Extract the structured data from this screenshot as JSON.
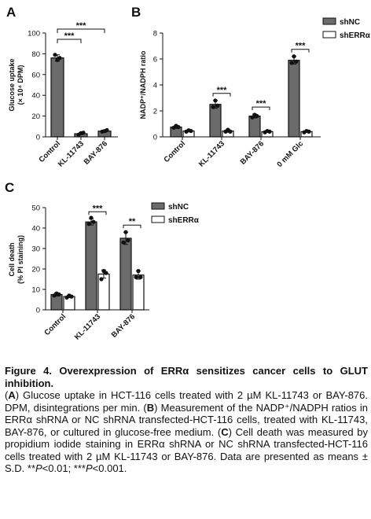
{
  "colors": {
    "shNC": "#6b6b6b",
    "shERR": "#ffffff",
    "stroke": "#111111"
  },
  "chart_data": [
    {
      "panel": "A",
      "type": "bar",
      "categories": [
        "Control",
        "KL-11743",
        "BAY-876"
      ],
      "values": [
        76,
        3,
        5.5
      ],
      "errors": [
        3,
        1,
        1
      ],
      "points": [
        [
          79,
          74,
          76
        ],
        [
          2,
          3.5,
          4
        ],
        [
          5,
          5.5,
          6.5
        ]
      ],
      "ylabel_line1": "Glucose uptake",
      "ylabel_line2": "(× 10⁴ DPM)",
      "ylim": [
        0,
        100
      ],
      "yticks": [
        "0",
        "20",
        "40",
        "60",
        "80",
        "100"
      ],
      "significance": [
        "***",
        "***"
      ],
      "series_color": "shNC"
    },
    {
      "panel": "B",
      "type": "bar",
      "categories": [
        "Control",
        "KL-11743",
        "BAY-876",
        "0 mM Glc"
      ],
      "series": [
        {
          "name": "shNC",
          "values": [
            0.75,
            2.5,
            1.6,
            5.9
          ],
          "errors": [
            0.1,
            0.3,
            0.15,
            0.3
          ],
          "points": [
            [
              0.7,
              0.85,
              0.75
            ],
            [
              2.3,
              2.8,
              2.4
            ],
            [
              1.5,
              1.7,
              1.6
            ],
            [
              5.7,
              6.2,
              5.8
            ]
          ]
        },
        {
          "name": "shERRα",
          "values": [
            0.45,
            0.45,
            0.4,
            0.4
          ],
          "errors": [
            0.05,
            0.1,
            0.05,
            0.05
          ],
          "points": [
            [
              0.4,
              0.5,
              0.45
            ],
            [
              0.4,
              0.55,
              0.4
            ],
            [
              0.35,
              0.45,
              0.4
            ],
            [
              0.35,
              0.45,
              0.4
            ]
          ]
        }
      ],
      "ylabel": "NADP⁺/NADPH ratio",
      "ylim": [
        0,
        8
      ],
      "yticks": [
        "0",
        "2",
        "4",
        "6",
        "8"
      ],
      "significance": [
        "",
        "***",
        "***",
        "***"
      ],
      "legend": [
        "shNC",
        "shERRα"
      ]
    },
    {
      "panel": "C",
      "type": "bar",
      "categories": [
        "Control",
        "KL-11743",
        "BAY-876"
      ],
      "series": [
        {
          "name": "shNC",
          "values": [
            7.5,
            43,
            35
          ],
          "errors": [
            0.8,
            1.5,
            3
          ],
          "points": [
            [
              7,
              8,
              7.5
            ],
            [
              42,
              45,
              43
            ],
            [
              33,
              38,
              34
            ]
          ]
        },
        {
          "name": "shERRα",
          "values": [
            6.5,
            17.5,
            17
          ],
          "errors": [
            0.6,
            2,
            2
          ],
          "points": [
            [
              6,
              7,
              6.5
            ],
            [
              15,
              19,
              18
            ],
            [
              16,
              19,
              16
            ]
          ]
        }
      ],
      "ylabel_line1": "Cell death",
      "ylabel_line2": "(% PI staining)",
      "ylim": [
        0,
        50
      ],
      "yticks": [
        "0",
        "10",
        "20",
        "30",
        "40",
        "50"
      ],
      "significance": [
        "",
        "***",
        "**"
      ],
      "legend": [
        "shNC",
        "shERRα"
      ]
    }
  ],
  "caption": {
    "title": "Figure 4. Overexpression of ERRα sensitizes cancer cells to GLUT inhibition.",
    "a_letter": "A",
    "a_text": ") Glucose uptake in HCT-116 cells treated with 2 µM KL-11743 or BAY-876. DPM, disintegrations per min. (",
    "b_letter": "B",
    "b_text": ") Measurement of the NADP⁺/NADPH ratios in ERRα shRNA or NC shRNA transfected-HCT-116 cells, treated with KL-11743, BAY-876, or cultured in glucose-free medium. (",
    "c_letter": "C",
    "c_text": ") Cell death was measured by propidium iodide staining in ERRα shRNA or NC shRNA transfected-HCT-116 cells treated with 2 µM KL-11743 or BAY-876. Data are presented as means ± S.D. **",
    "p1": "P",
    "p1_text": "<0.01; ***",
    "p2": "P",
    "p2_text": "<0.001."
  }
}
